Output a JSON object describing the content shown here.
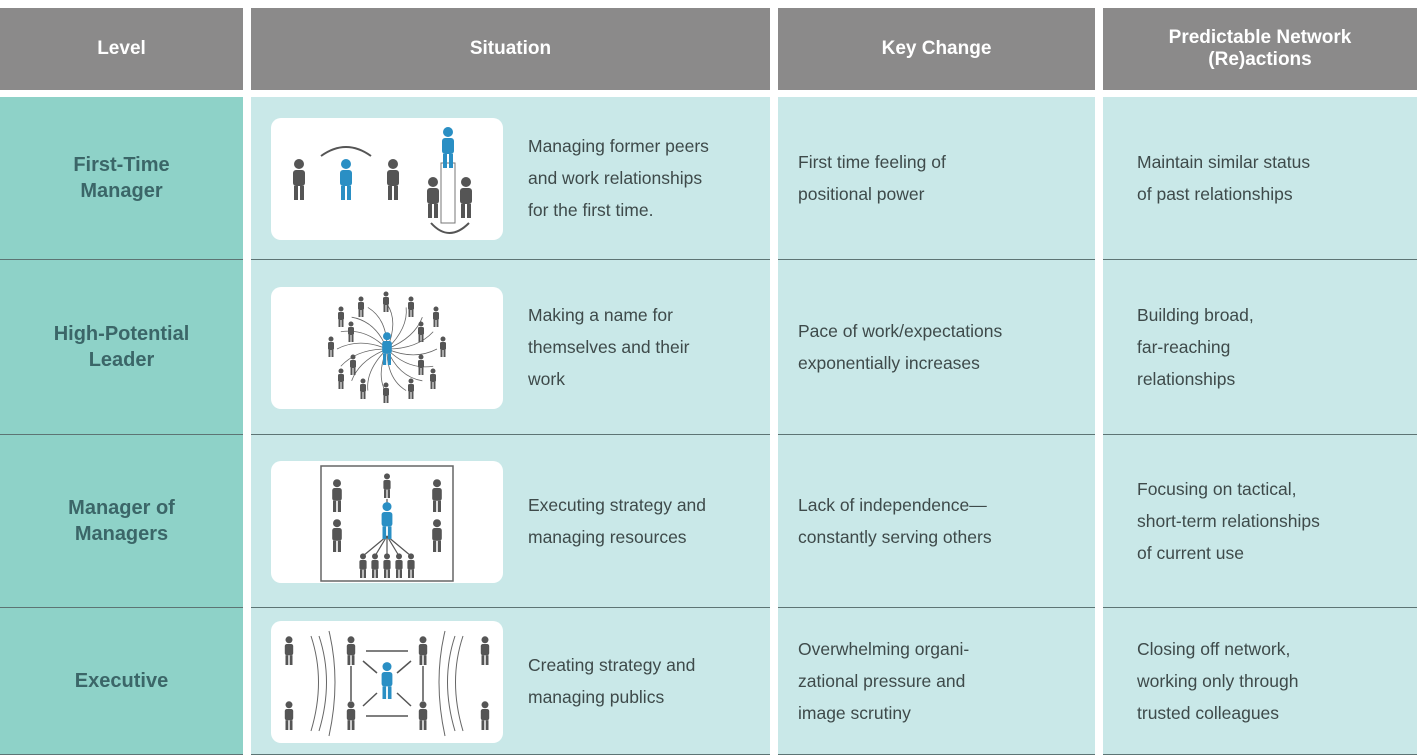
{
  "header": {
    "columns": [
      "Level",
      "Situation",
      "Key Change",
      [
        "Predictable Network",
        "(Re)actions"
      ]
    ]
  },
  "rows": [
    {
      "level": [
        "First-Time",
        "Manager"
      ],
      "situation": [
        "Managing former peers",
        "and work relationships",
        "for the first time."
      ],
      "key_change": [
        "First time feeling of",
        "positional power"
      ],
      "reactions": [
        "Maintain similar status",
        "of past relationships"
      ]
    },
    {
      "level": [
        "High-Potential",
        "Leader"
      ],
      "situation": [
        "Making a name for",
        "themselves and their",
        "work"
      ],
      "key_change": [
        "Pace of work/expectations",
        "exponentially increases"
      ],
      "reactions": [
        "Building broad,",
        "far-reaching",
        "relationships"
      ]
    },
    {
      "level": [
        "Manager of",
        "Managers"
      ],
      "situation": [
        "Executing strategy and",
        "managing resources"
      ],
      "key_change": [
        "Lack of independence—",
        "constantly serving others"
      ],
      "reactions": [
        "Focusing on tactical,",
        "short-term relationships",
        "of current use"
      ]
    },
    {
      "level": [
        "Executive"
      ],
      "situation": [
        "Creating strategy and",
        "managing publics"
      ],
      "key_change": [
        "Overwhelming organi-",
        "zational pressure and",
        "image scrutiny"
      ],
      "reactions": [
        "Closing off network,",
        "working only through",
        "trusted colleagues"
      ]
    }
  ]
}
